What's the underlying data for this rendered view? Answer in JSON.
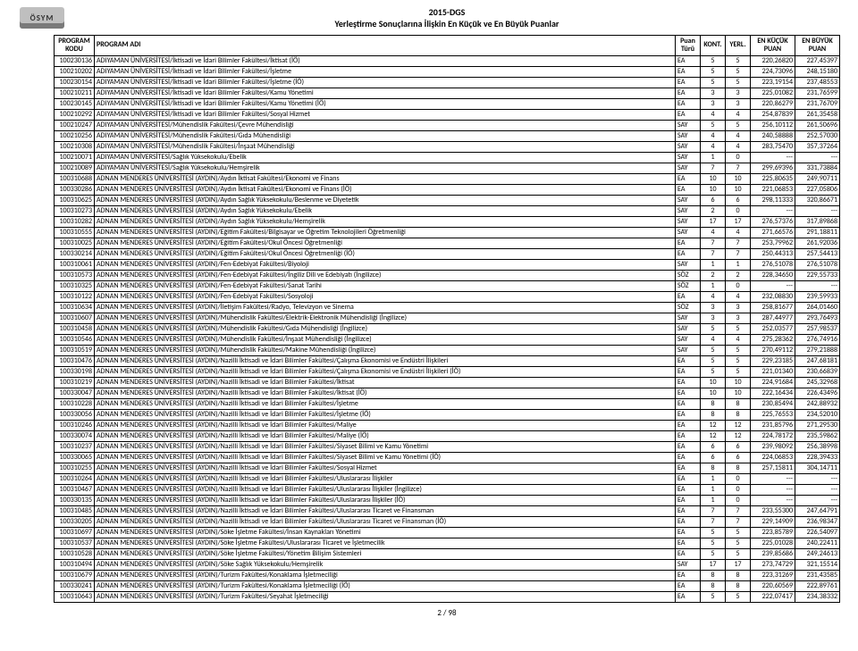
{
  "document": {
    "logo_text": "ÖSYM",
    "title_line1": "2015-DGS",
    "title_line2": "Yerleştirme Sonuçlarına İlişkin En Küçük ve En Büyük Puanlar",
    "page_number_label": "2 / 98"
  },
  "table": {
    "columns": [
      {
        "key": "kodu",
        "label": "PROGRAM KODU"
      },
      {
        "key": "adi",
        "label": "PROGRAM ADI"
      },
      {
        "key": "turu",
        "label": "Puan Türü"
      },
      {
        "key": "kont",
        "label": "KONT."
      },
      {
        "key": "yerl",
        "label": "YERL."
      },
      {
        "key": "kucuk",
        "label": "EN KÜÇÜK PUAN"
      },
      {
        "key": "buyuk",
        "label": "EN BÜYÜK PUAN"
      }
    ],
    "rows": [
      [
        "100230136",
        "ADIYAMAN ÜNİVERSİTESİ/İktisadi ve İdari Bilimler Fakültesi/İktisat (İÖ)",
        "EA",
        "5",
        "5",
        "220,26820",
        "227,45397"
      ],
      [
        "100210202",
        "ADIYAMAN ÜNİVERSİTESİ/İktisadi ve İdari Bilimler Fakültesi/İşletme",
        "EA",
        "5",
        "5",
        "224,73096",
        "248,15180"
      ],
      [
        "100230154",
        "ADIYAMAN ÜNİVERSİTESİ/İktisadi ve İdari Bilimler Fakültesi/İşletme (İÖ)",
        "EA",
        "5",
        "5",
        "223,19154",
        "237,48553"
      ],
      [
        "100210211",
        "ADIYAMAN ÜNİVERSİTESİ/İktisadi ve İdari Bilimler Fakültesi/Kamu Yönetimi",
        "EA",
        "3",
        "3",
        "225,01082",
        "231,76599"
      ],
      [
        "100230145",
        "ADIYAMAN ÜNİVERSİTESİ/İktisadi ve İdari Bilimler Fakültesi/Kamu Yönetimi (İÖ)",
        "EA",
        "3",
        "3",
        "220,86279",
        "231,76709"
      ],
      [
        "100210292",
        "ADIYAMAN ÜNİVERSİTESİ/İktisadi ve İdari Bilimler Fakültesi/Sosyal Hizmet",
        "EA",
        "4",
        "4",
        "254,87839",
        "261,35458"
      ],
      [
        "100210247",
        "ADIYAMAN ÜNİVERSİTESİ/Mühendislik Fakültesi/Çevre Mühendisliği",
        "SAY",
        "5",
        "5",
        "256,10112",
        "261,50696"
      ],
      [
        "100210256",
        "ADIYAMAN ÜNİVERSİTESİ/Mühendislik Fakültesi/Gıda Mühendisliği",
        "SAY",
        "4",
        "4",
        "240,58888",
        "252,57030"
      ],
      [
        "100210308",
        "ADIYAMAN ÜNİVERSİTESİ/Mühendislik Fakültesi/İnşaat Mühendisliği",
        "SAY",
        "4",
        "4",
        "283,75470",
        "357,37264"
      ],
      [
        "100210071",
        "ADIYAMAN ÜNİVERSİTESİ/Sağlık Yüksekokulu/Ebelik",
        "SAY",
        "1",
        "0",
        "---",
        "---"
      ],
      [
        "100210089",
        "ADIYAMAN ÜNİVERSİTESİ/Sağlık Yüksekokulu/Hemşirelik",
        "SAY",
        "7",
        "7",
        "299,69396",
        "331,73884"
      ],
      [
        "100310688",
        "ADNAN MENDERES ÜNİVERSİTESİ (AYDIN)/Aydın İktisat Fakültesi/Ekonomi ve Finans",
        "EA",
        "10",
        "10",
        "225,80635",
        "249,90711"
      ],
      [
        "100330286",
        "ADNAN MENDERES ÜNİVERSİTESİ (AYDIN)/Aydın İktisat Fakültesi/Ekonomi ve Finans (İÖ)",
        "EA",
        "10",
        "10",
        "221,06853",
        "227,05806"
      ],
      [
        "100310625",
        "ADNAN MENDERES ÜNİVERSİTESİ (AYDIN)/Aydın Sağlık Yüksekokulu/Beslenme ve Diyetetik",
        "SAY",
        "6",
        "6",
        "298,11333",
        "320,86671"
      ],
      [
        "100310273",
        "ADNAN MENDERES ÜNİVERSİTESİ (AYDIN)/Aydın Sağlık Yüksekokulu/Ebelik",
        "SAY",
        "2",
        "0",
        "---",
        "---"
      ],
      [
        "100310282",
        "ADNAN MENDERES ÜNİVERSİTESİ (AYDIN)/Aydın Sağlık Yüksekokulu/Hemşirelik",
        "SAY",
        "17",
        "17",
        "276,57376",
        "317,89868"
      ],
      [
        "100310555",
        "ADNAN MENDERES ÜNİVERSİTESİ (AYDIN)/Eğitim Fakültesi/Bilgisayar ve Öğretim Teknolojileri Öğretmenliği",
        "SAY",
        "4",
        "4",
        "271,66576",
        "291,18811"
      ],
      [
        "100310025",
        "ADNAN MENDERES ÜNİVERSİTESİ (AYDIN)/Eğitim Fakültesi/Okul Öncesi Öğretmenliği",
        "EA",
        "7",
        "7",
        "253,79962",
        "261,92036"
      ],
      [
        "100330214",
        "ADNAN MENDERES ÜNİVERSİTESİ (AYDIN)/Eğitim Fakültesi/Okul Öncesi Öğretmenliği (İÖ)",
        "EA",
        "7",
        "7",
        "250,44313",
        "257,54413"
      ],
      [
        "100310061",
        "ADNAN MENDERES ÜNİVERSİTESİ (AYDIN)/Fen-Edebiyat Fakültesi/Biyoloji",
        "SAY",
        "1",
        "1",
        "276,51078",
        "276,51078"
      ],
      [
        "100310573",
        "ADNAN MENDERES ÜNİVERSİTESİ (AYDIN)/Fen-Edebiyat Fakültesi/İngiliz Dili ve Edebiyatı  (İngilizce)",
        "SÖZ",
        "2",
        "2",
        "228,34650",
        "229,55733"
      ],
      [
        "100310325",
        "ADNAN MENDERES ÜNİVERSİTESİ (AYDIN)/Fen-Edebiyat Fakültesi/Sanat Tarihi",
        "SÖZ",
        "1",
        "0",
        "---",
        "---"
      ],
      [
        "100310122",
        "ADNAN MENDERES ÜNİVERSİTESİ (AYDIN)/Fen-Edebiyat Fakültesi/Sosyoloji",
        "EA",
        "4",
        "4",
        "232,08830",
        "239,59933"
      ],
      [
        "100310634",
        "ADNAN MENDERES ÜNİVERSİTESİ (AYDIN)/İletişim Fakültesi/Radyo, Televizyon ve Sinema",
        "SÖZ",
        "3",
        "3",
        "258,81677",
        "264,01460"
      ],
      [
        "100310607",
        "ADNAN MENDERES ÜNİVERSİTESİ (AYDIN)/Mühendislik Fakültesi/Elektrik-Elektronik Mühendisliği (İngilizce)",
        "SAY",
        "3",
        "3",
        "287,44977",
        "293,76493"
      ],
      [
        "100310458",
        "ADNAN MENDERES ÜNİVERSİTESİ (AYDIN)/Mühendislik Fakültesi/Gıda Mühendisliği (İngilizce)",
        "SAY",
        "5",
        "5",
        "252,03577",
        "257,98537"
      ],
      [
        "100310546",
        "ADNAN MENDERES ÜNİVERSİTESİ (AYDIN)/Mühendislik Fakültesi/İnşaat Mühendisliği (İngilizce)",
        "SAY",
        "4",
        "4",
        "275,28362",
        "276,74916"
      ],
      [
        "100310519",
        "ADNAN MENDERES ÜNİVERSİTESİ (AYDIN)/Mühendislik Fakültesi/Makine Mühendisliği (İngilizce)",
        "SAY",
        "5",
        "5",
        "270,49112",
        "279,21888"
      ],
      [
        "100310476",
        "ADNAN MENDERES ÜNİVERSİTESİ (AYDIN)/Nazilli İktisadi ve İdari Bilimler Fakültesi/Çalışma Ekonomisi ve Endüstri İlişkileri",
        "EA",
        "5",
        "5",
        "229,23185",
        "247,68181"
      ],
      [
        "100330198",
        "ADNAN MENDERES ÜNİVERSİTESİ (AYDIN)/Nazilli İktisadi ve İdari Bilimler Fakültesi/Çalışma Ekonomisi ve Endüstri İlişkileri (İÖ)",
        "EA",
        "5",
        "5",
        "221,01340",
        "230,66839"
      ],
      [
        "100310219",
        "ADNAN MENDERES ÜNİVERSİTESİ (AYDIN)/Nazilli İktisadi ve İdari Bilimler Fakültesi/İktisat",
        "EA",
        "10",
        "10",
        "224,91684",
        "245,32968"
      ],
      [
        "100330047",
        "ADNAN MENDERES ÜNİVERSİTESİ (AYDIN)/Nazilli İktisadi ve İdari Bilimler Fakültesi/İktisat (İÖ)",
        "EA",
        "10",
        "10",
        "222,16434",
        "226,43496"
      ],
      [
        "100310228",
        "ADNAN MENDERES ÜNİVERSİTESİ (AYDIN)/Nazilli İktisadi ve İdari Bilimler Fakültesi/İşletme",
        "EA",
        "8",
        "8",
        "230,85494",
        "242,88932"
      ],
      [
        "100330056",
        "ADNAN MENDERES ÜNİVERSİTESİ (AYDIN)/Nazilli İktisadi ve İdari Bilimler Fakültesi/İşletme (İÖ)",
        "EA",
        "8",
        "8",
        "225,76553",
        "234,52010"
      ],
      [
        "100310246",
        "ADNAN MENDERES ÜNİVERSİTESİ (AYDIN)/Nazilli İktisadi ve İdari Bilimler Fakültesi/Maliye",
        "EA",
        "12",
        "12",
        "231,85796",
        "271,29530"
      ],
      [
        "100330074",
        "ADNAN MENDERES ÜNİVERSİTESİ (AYDIN)/Nazilli İktisadi ve İdari Bilimler Fakültesi/Maliye (İÖ)",
        "EA",
        "12",
        "12",
        "224,78172",
        "235,59862"
      ],
      [
        "100310237",
        "ADNAN MENDERES ÜNİVERSİTESİ (AYDIN)/Nazilli İktisadi ve İdari Bilimler Fakültesi/Siyaset Bilimi ve Kamu Yönetimi",
        "EA",
        "6",
        "6",
        "239,98092",
        "256,38998"
      ],
      [
        "100330065",
        "ADNAN MENDERES ÜNİVERSİTESİ (AYDIN)/Nazilli İktisadi ve İdari Bilimler Fakültesi/Siyaset Bilimi ve Kamu Yönetimi (İÖ)",
        "EA",
        "6",
        "6",
        "224,06853",
        "228,39433"
      ],
      [
        "100310255",
        "ADNAN MENDERES ÜNİVERSİTESİ (AYDIN)/Nazilli İktisadi ve İdari Bilimler Fakültesi/Sosyal Hizmet",
        "EA",
        "8",
        "8",
        "257,15811",
        "304,14711"
      ],
      [
        "100310264",
        "ADNAN MENDERES ÜNİVERSİTESİ (AYDIN)/Nazilli İktisadi ve İdari Bilimler Fakültesi/Uluslararası İlişkiler",
        "EA",
        "1",
        "0",
        "---",
        "---"
      ],
      [
        "100310467",
        "ADNAN MENDERES ÜNİVERSİTESİ (AYDIN)/Nazilli İktisadi ve İdari Bilimler Fakültesi/Uluslararası İlişkiler (İngilizce)",
        "EA",
        "1",
        "0",
        "---",
        "---"
      ],
      [
        "100330135",
        "ADNAN MENDERES ÜNİVERSİTESİ (AYDIN)/Nazilli İktisadi ve İdari Bilimler Fakültesi/Uluslararası İlişkiler (İÖ)",
        "EA",
        "1",
        "0",
        "---",
        "---"
      ],
      [
        "100310485",
        "ADNAN MENDERES ÜNİVERSİTESİ (AYDIN)/Nazilli İktisadi ve İdari Bilimler Fakültesi/Uluslararası Ticaret ve Finansman",
        "EA",
        "7",
        "7",
        "233,55300",
        "247,64791"
      ],
      [
        "100330205",
        "ADNAN MENDERES ÜNİVERSİTESİ (AYDIN)/Nazilli İktisadi ve İdari Bilimler Fakültesi/Uluslararası Ticaret ve Finansman (İÖ)",
        "EA",
        "7",
        "7",
        "229,14909",
        "236,98347"
      ],
      [
        "100310697",
        "ADNAN MENDERES ÜNİVERSİTESİ (AYDIN)/Söke İşletme Fakültesi/İnsan Kaynakları Yönetimi",
        "EA",
        "5",
        "5",
        "223,85789",
        "226,54097"
      ],
      [
        "100310537",
        "ADNAN MENDERES ÜNİVERSİTESİ (AYDIN)/Söke İşletme Fakültesi/Uluslararası Ticaret ve İşletmecilik",
        "EA",
        "5",
        "5",
        "225,01028",
        "240,22411"
      ],
      [
        "100310528",
        "ADNAN MENDERES ÜNİVERSİTESİ (AYDIN)/Söke İşletme Fakültesi/Yönetim Bilişim Sistemleri",
        "EA",
        "5",
        "5",
        "239,85686",
        "249,24613"
      ],
      [
        "100310494",
        "ADNAN MENDERES ÜNİVERSİTESİ (AYDIN)/Söke Sağlık Yüksekokulu/Hemşirelik",
        "SAY",
        "17",
        "17",
        "273,74729",
        "321,15514"
      ],
      [
        "100310679",
        "ADNAN MENDERES ÜNİVERSİTESİ (AYDIN)/Turizm Fakültesi/Konaklama İşletmeciliği",
        "EA",
        "8",
        "8",
        "223,31269",
        "231,43585"
      ],
      [
        "100330241",
        "ADNAN MENDERES ÜNİVERSİTESİ (AYDIN)/Turizm Fakültesi/Konaklama İşletmeciliği (İÖ)",
        "EA",
        "8",
        "8",
        "220,60569",
        "222,89761"
      ],
      [
        "100310643",
        "ADNAN MENDERES ÜNİVERSİTESİ (AYDIN)/Turizm Fakültesi/Seyahat İşletmeciliği",
        "EA",
        "5",
        "5",
        "222,07417",
        "234,38332"
      ]
    ]
  },
  "style": {
    "background_color": "#ffffff",
    "text_color": "#000000",
    "border_color": "#000000",
    "header_font_size": 10,
    "body_font_size": 8
  }
}
